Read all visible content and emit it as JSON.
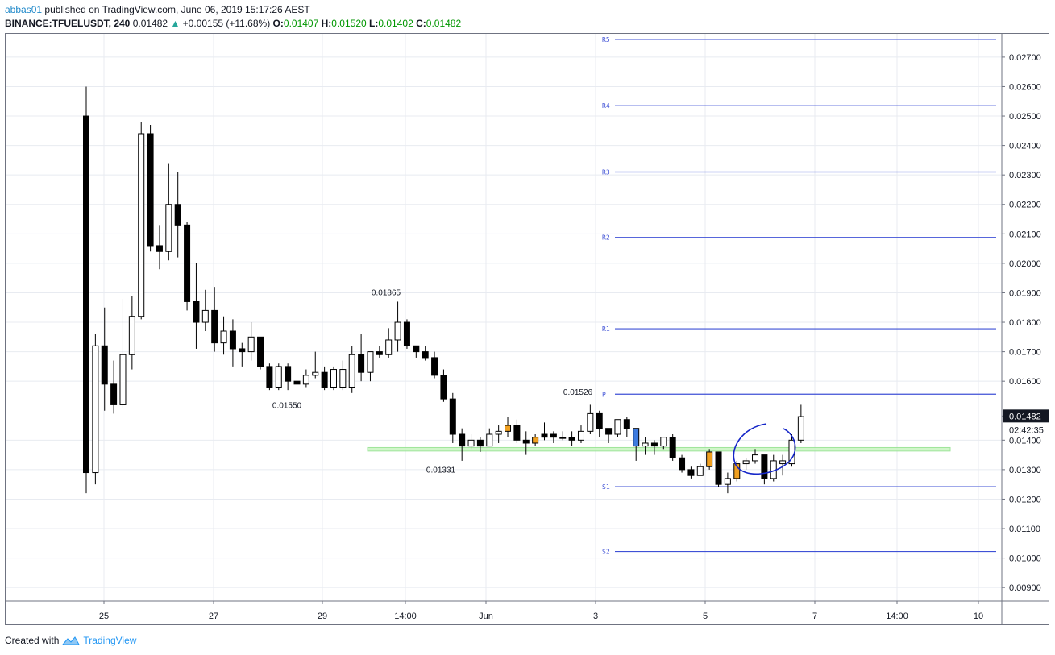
{
  "header": {
    "user": "abbas01",
    "published": "published on TradingView.com, June 06, 2019 15:17:26 AEST",
    "symbol": "BINANCE:TFUELUSDT, 240",
    "last": "0.01482",
    "change": "+0.00155 (+11.68%)",
    "o_label": "O:",
    "o_value": "0.01407",
    "h_label": "H:",
    "h_value": "0.01520",
    "l_label": "L:",
    "l_value": "0.01402",
    "c_label": "C:",
    "c_value": "0.01482"
  },
  "footer": {
    "created_with": "Created with",
    "brand": "TradingView"
  },
  "colors": {
    "pivot_line": "#3f51d6",
    "support_zone": "#c8f5c0",
    "annotation": "#1526c8",
    "price_tag_bg": "#131722"
  },
  "chart_data": {
    "type": "candlestick",
    "symbol": "BINANCE:TFUELUSDT",
    "interval": "240",
    "ylim": [
      0.0085,
      0.028
    ],
    "y_ticks": [
      "0.02700",
      "0.02600",
      "0.02500",
      "0.02400",
      "0.02300",
      "0.02200",
      "0.02100",
      "0.02000",
      "0.01900",
      "0.01800",
      "0.01700",
      "0.01600",
      "0.01482",
      "0.01400",
      "0.01300",
      "0.01200",
      "0.01100",
      "0.01000",
      "0.00900"
    ],
    "x_ticks": [
      "25",
      "27",
      "29",
      "14:00",
      "Jun",
      "3",
      "5",
      "7",
      "14:00",
      "10"
    ],
    "last_price": 0.01482,
    "countdown": "02:42:35",
    "pivots": [
      {
        "label": "R5",
        "value": 0.0276
      },
      {
        "label": "R4",
        "value": 0.02535
      },
      {
        "label": "R3",
        "value": 0.0231
      },
      {
        "label": "R2",
        "value": 0.02088
      },
      {
        "label": "R1",
        "value": 0.01778
      },
      {
        "label": "P",
        "value": 0.01556
      },
      {
        "label": "S1",
        "value": 0.01242
      },
      {
        "label": "S2",
        "value": 0.01022
      }
    ],
    "support_zone": [
      0.01363,
      0.01375
    ],
    "annotations": [
      {
        "text": "0.01865",
        "value": 0.01865
      },
      {
        "text": "0.01550",
        "value": 0.0155
      },
      {
        "text": "0.01331",
        "value": 0.01331
      },
      {
        "text": "0.01526",
        "value": 0.01526
      }
    ],
    "candles": [
      [
        0.025,
        0.026,
        0.0122,
        0.0129,
        "d"
      ],
      [
        0.0129,
        0.0176,
        0.0125,
        0.0172,
        "u"
      ],
      [
        0.0172,
        0.0185,
        0.015,
        0.0159,
        "d"
      ],
      [
        0.0159,
        0.0167,
        0.0149,
        0.0152,
        "d"
      ],
      [
        0.0152,
        0.0188,
        0.0151,
        0.0169,
        "u"
      ],
      [
        0.0169,
        0.0189,
        0.0164,
        0.0182,
        "u"
      ],
      [
        0.0182,
        0.0248,
        0.0181,
        0.0244,
        "u"
      ],
      [
        0.0244,
        0.0247,
        0.0204,
        0.0206,
        "d"
      ],
      [
        0.0206,
        0.0213,
        0.0198,
        0.0204,
        "d"
      ],
      [
        0.0204,
        0.0234,
        0.0201,
        0.022,
        "u"
      ],
      [
        0.022,
        0.0231,
        0.0202,
        0.0213,
        "d"
      ],
      [
        0.0213,
        0.0214,
        0.0184,
        0.0187,
        "d"
      ],
      [
        0.0187,
        0.02,
        0.0171,
        0.018,
        "d"
      ],
      [
        0.018,
        0.0191,
        0.0177,
        0.0184,
        "u"
      ],
      [
        0.0184,
        0.0192,
        0.017,
        0.0173,
        "d"
      ],
      [
        0.0173,
        0.0182,
        0.0169,
        0.0177,
        "u"
      ],
      [
        0.0177,
        0.0181,
        0.0165,
        0.0171,
        "d"
      ],
      [
        0.0171,
        0.0173,
        0.0165,
        0.017,
        "d"
      ],
      [
        0.017,
        0.018,
        0.0167,
        0.0175,
        "u"
      ],
      [
        0.0175,
        0.0175,
        0.0164,
        0.0165,
        "d"
      ],
      [
        0.0165,
        0.0166,
        0.0157,
        0.0158,
        "d"
      ],
      [
        0.0158,
        0.0166,
        0.0157,
        0.0165,
        "u"
      ],
      [
        0.0165,
        0.0166,
        0.0157,
        0.016,
        "d"
      ],
      [
        0.016,
        0.0161,
        0.0156,
        0.0159,
        "d"
      ],
      [
        0.0159,
        0.0164,
        0.0158,
        0.0162,
        "u"
      ],
      [
        0.0162,
        0.017,
        0.0161,
        0.0163,
        "u"
      ],
      [
        0.0163,
        0.0165,
        0.0157,
        0.0158,
        "d"
      ],
      [
        0.0158,
        0.0165,
        0.0157,
        0.0164,
        "u"
      ],
      [
        0.0164,
        0.0167,
        0.0157,
        0.0158,
        "u"
      ],
      [
        0.0158,
        0.0172,
        0.0156,
        0.0169,
        "u"
      ],
      [
        0.0169,
        0.0176,
        0.016,
        0.0163,
        "d"
      ],
      [
        0.0163,
        0.017,
        0.016,
        0.017,
        "u"
      ],
      [
        0.017,
        0.0172,
        0.0168,
        0.0169,
        "d"
      ],
      [
        0.0169,
        0.0178,
        0.0168,
        0.0174,
        "u"
      ],
      [
        0.0174,
        0.0187,
        0.017,
        0.018,
        "u"
      ],
      [
        0.018,
        0.0181,
        0.0171,
        0.0172,
        "d"
      ],
      [
        0.0172,
        0.0172,
        0.0168,
        0.017,
        "d"
      ],
      [
        0.017,
        0.0172,
        0.0167,
        0.0168,
        "d"
      ],
      [
        0.0168,
        0.017,
        0.0161,
        0.0162,
        "d"
      ],
      [
        0.0162,
        0.0164,
        0.0153,
        0.0154,
        "d"
      ],
      [
        0.0154,
        0.0156,
        0.0139,
        0.0142,
        "d"
      ],
      [
        0.0142,
        0.0144,
        0.0133,
        0.0138,
        "d"
      ],
      [
        0.0138,
        0.0142,
        0.0137,
        0.014,
        "u"
      ],
      [
        0.014,
        0.0141,
        0.0136,
        0.0138,
        "d"
      ],
      [
        0.0138,
        0.0144,
        0.0138,
        0.0142,
        "u"
      ],
      [
        0.0142,
        0.0145,
        0.0139,
        0.0143,
        "u"
      ],
      [
        0.0143,
        0.0148,
        0.0141,
        0.0145,
        "o"
      ],
      [
        0.0145,
        0.0147,
        0.0139,
        0.014,
        "d"
      ],
      [
        0.014,
        0.0143,
        0.0135,
        0.0139,
        "d"
      ],
      [
        0.0139,
        0.0142,
        0.0138,
        0.0141,
        "o"
      ],
      [
        0.0141,
        0.0146,
        0.014,
        0.0142,
        "d"
      ],
      [
        0.0142,
        0.0143,
        0.0139,
        0.0141,
        "d"
      ],
      [
        0.0141,
        0.0143,
        0.014,
        0.0141,
        "d"
      ],
      [
        0.0141,
        0.0143,
        0.0138,
        0.014,
        "d"
      ],
      [
        0.014,
        0.0145,
        0.0139,
        0.0143,
        "u"
      ],
      [
        0.0143,
        0.0152,
        0.0142,
        0.0149,
        "u"
      ],
      [
        0.0149,
        0.015,
        0.0141,
        0.0144,
        "d"
      ],
      [
        0.0144,
        0.0144,
        0.0139,
        0.0142,
        "d"
      ],
      [
        0.0142,
        0.0147,
        0.0141,
        0.0147,
        "u"
      ],
      [
        0.0147,
        0.0148,
        0.0141,
        0.0144,
        "d"
      ],
      [
        0.0144,
        0.0144,
        0.0133,
        0.0138,
        "b"
      ],
      [
        0.0138,
        0.0141,
        0.0135,
        0.0139,
        "u"
      ],
      [
        0.0139,
        0.014,
        0.0135,
        0.0138,
        "d"
      ],
      [
        0.0138,
        0.0141,
        0.0137,
        0.0141,
        "u"
      ],
      [
        0.0141,
        0.0142,
        0.0133,
        0.0134,
        "d"
      ],
      [
        0.0134,
        0.0135,
        0.0129,
        0.013,
        "d"
      ],
      [
        0.013,
        0.0131,
        0.0127,
        0.0128,
        "d"
      ],
      [
        0.0128,
        0.0132,
        0.0128,
        0.0131,
        "u"
      ],
      [
        0.0131,
        0.0137,
        0.013,
        0.0136,
        "o"
      ],
      [
        0.0136,
        0.0136,
        0.0124,
        0.0125,
        "d"
      ],
      [
        0.0125,
        0.0129,
        0.0122,
        0.0127,
        "u"
      ],
      [
        0.0127,
        0.0133,
        0.0126,
        0.0132,
        "o"
      ],
      [
        0.0132,
        0.0134,
        0.013,
        0.0133,
        "u"
      ],
      [
        0.0133,
        0.0137,
        0.0132,
        0.0135,
        "u"
      ],
      [
        0.0135,
        0.0135,
        0.0125,
        0.0127,
        "d"
      ],
      [
        0.0127,
        0.0135,
        0.0126,
        0.0133,
        "u"
      ],
      [
        0.0133,
        0.0135,
        0.0128,
        0.0132,
        "u"
      ],
      [
        0.0132,
        0.0142,
        0.0131,
        0.014,
        "u"
      ],
      [
        0.014,
        0.0152,
        0.0139,
        0.0148,
        "u"
      ]
    ]
  }
}
